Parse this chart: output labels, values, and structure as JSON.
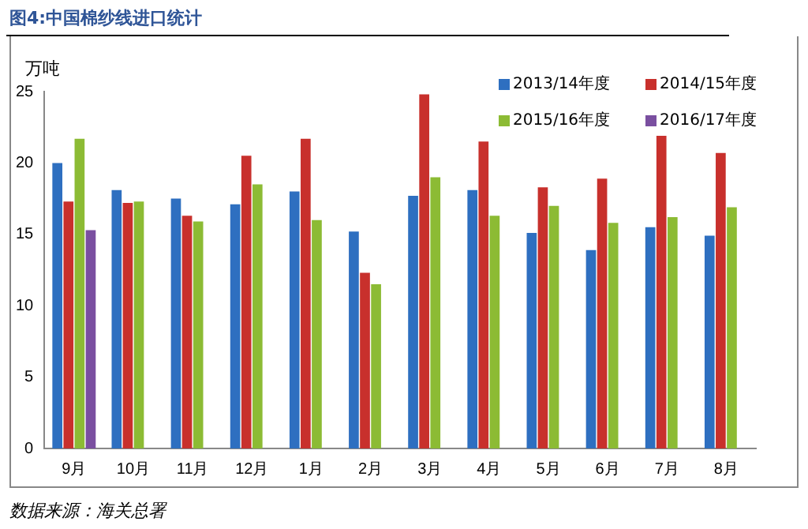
{
  "chart_data": {
    "type": "bar",
    "title": "图4:中国棉纱线进口统计",
    "ylabel": "万吨",
    "annotations": [
      "数据来源：海关总署"
    ],
    "categories": [
      "9月",
      "10月",
      "11月",
      "12月",
      "1月",
      "2月",
      "3月",
      "4月",
      "5月",
      "6月",
      "7月",
      "8月"
    ],
    "series": [
      {
        "name": "2013/14年度",
        "color": "#2e6fc0",
        "values": [
          20.0,
          18.1,
          17.5,
          17.1,
          18.0,
          15.2,
          17.7,
          18.1,
          15.1,
          13.9,
          15.5,
          14.9
        ]
      },
      {
        "name": "2014/15年度",
        "color": "#c8302c",
        "values": [
          17.3,
          17.2,
          16.3,
          20.5,
          21.7,
          12.3,
          24.8,
          21.5,
          18.3,
          18.9,
          21.9,
          20.7
        ]
      },
      {
        "name": "2015/16年度",
        "color": "#8cbb34",
        "values": [
          21.7,
          17.3,
          15.9,
          18.5,
          16.0,
          11.5,
          19.0,
          16.3,
          17.0,
          15.8,
          16.2,
          16.9
        ]
      },
      {
        "name": "2016/17年度",
        "color": "#7a4fa0",
        "values": [
          15.3,
          null,
          null,
          null,
          null,
          null,
          null,
          null,
          null,
          null,
          null,
          null
        ]
      }
    ],
    "ylim": [
      0,
      25
    ],
    "yticks": [
      0,
      5,
      10,
      15,
      20,
      25
    ],
    "grid": false,
    "legend": "top right"
  }
}
